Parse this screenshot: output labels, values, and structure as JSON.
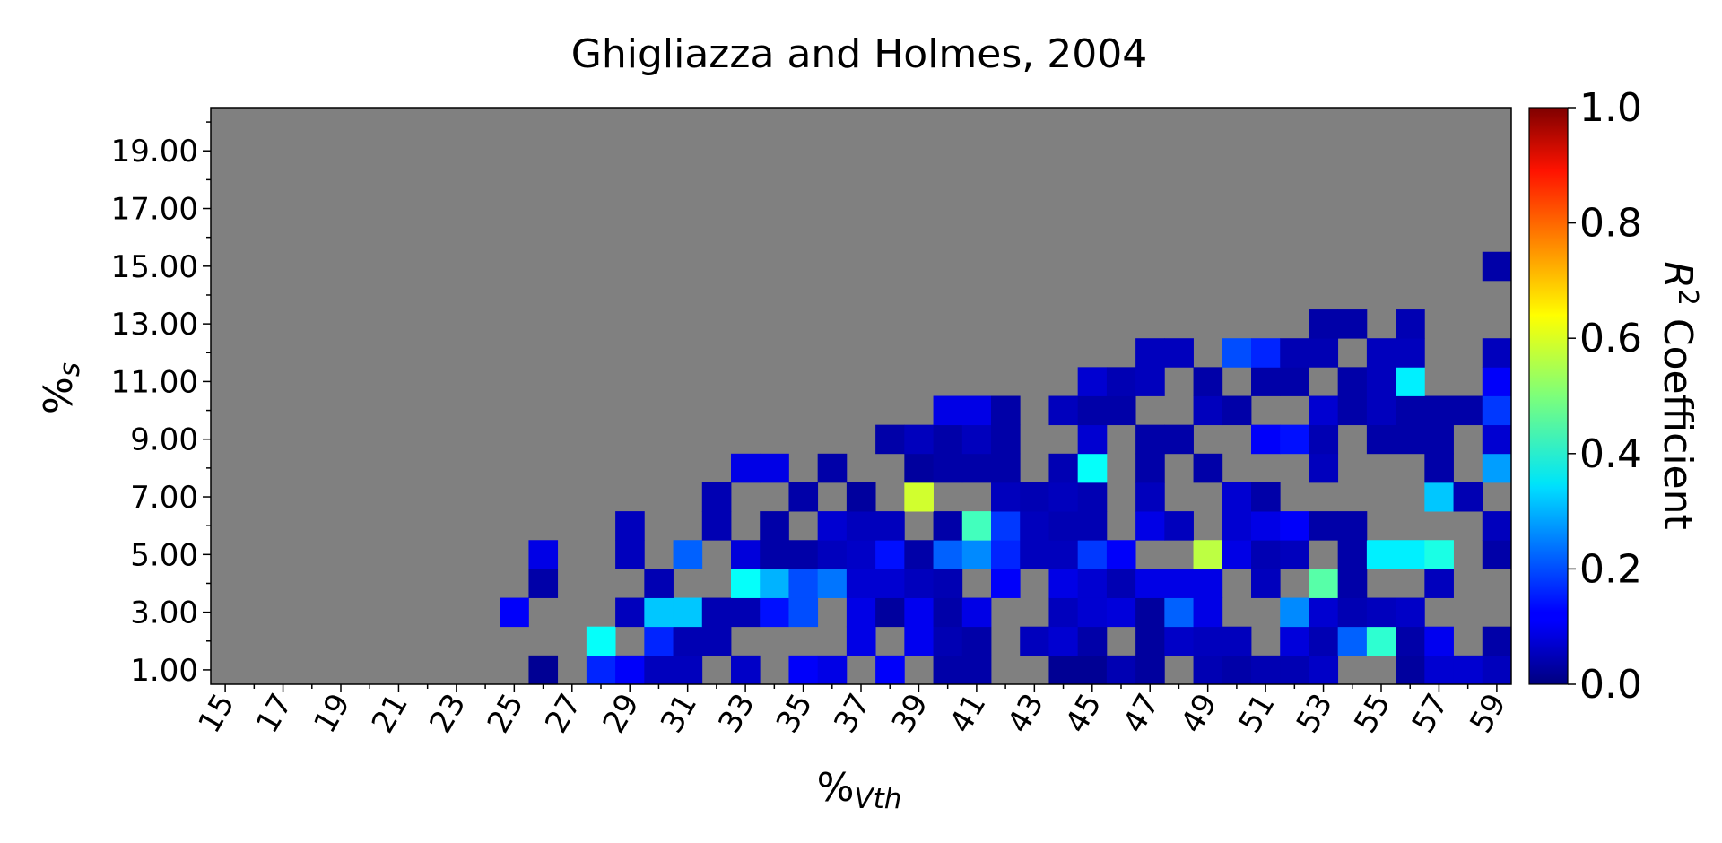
{
  "chart_data": {
    "type": "heatmap",
    "title": "Ghigliazza and Holmes, 2004",
    "xlabel": "%",
    "xlabel_sub": "Vth",
    "ylabel": "%",
    "ylabel_sub": "s",
    "x_start": 15,
    "x_end": 59,
    "x_tick_labels": [
      "15",
      "17",
      "19",
      "21",
      "23",
      "25",
      "27",
      "29",
      "31",
      "33",
      "35",
      "37",
      "39",
      "41",
      "43",
      "45",
      "47",
      "49",
      "51",
      "53",
      "55",
      "57",
      "59"
    ],
    "y_start": 1,
    "y_end": 20,
    "y_tick_labels": [
      "1.00",
      "3.00",
      "5.00",
      "7.00",
      "9.00",
      "11.00",
      "13.00",
      "15.00",
      "17.00",
      "19.00"
    ],
    "missing_color": "#808080",
    "colorbar": {
      "label": "R",
      "label_sup": "2",
      "label_rest": " Coefficient",
      "range": [
        0,
        1
      ],
      "tick_labels": [
        "0.0",
        "0.2",
        "0.4",
        "0.6",
        "0.8",
        "1.0"
      ],
      "colormap": "jet"
    },
    "cells": [
      [
        26,
        1,
        0.02
      ],
      [
        28,
        1,
        0.16
      ],
      [
        29,
        1,
        0.12
      ],
      [
        30,
        1,
        0.06
      ],
      [
        31,
        1,
        0.06
      ],
      [
        33,
        1,
        0.07
      ],
      [
        35,
        1,
        0.12
      ],
      [
        36,
        1,
        0.1
      ],
      [
        38,
        1,
        0.12
      ],
      [
        40,
        1,
        0.04
      ],
      [
        41,
        1,
        0.04
      ],
      [
        44,
        1,
        0.02
      ],
      [
        45,
        1,
        0.02
      ],
      [
        46,
        1,
        0.05
      ],
      [
        47,
        1,
        0.03
      ],
      [
        49,
        1,
        0.05
      ],
      [
        50,
        1,
        0.04
      ],
      [
        51,
        1,
        0.05
      ],
      [
        52,
        1,
        0.05
      ],
      [
        53,
        1,
        0.07
      ],
      [
        56,
        1,
        0.03
      ],
      [
        57,
        1,
        0.08
      ],
      [
        58,
        1,
        0.08
      ],
      [
        59,
        1,
        0.06
      ],
      [
        28,
        2,
        0.38
      ],
      [
        30,
        2,
        0.16
      ],
      [
        31,
        2,
        0.05
      ],
      [
        32,
        2,
        0.05
      ],
      [
        37,
        2,
        0.1
      ],
      [
        39,
        2,
        0.11
      ],
      [
        40,
        2,
        0.05
      ],
      [
        41,
        2,
        0.04
      ],
      [
        43,
        2,
        0.06
      ],
      [
        44,
        2,
        0.08
      ],
      [
        45,
        2,
        0.04
      ],
      [
        47,
        2,
        0.03
      ],
      [
        48,
        2,
        0.07
      ],
      [
        49,
        2,
        0.06
      ],
      [
        50,
        2,
        0.06
      ],
      [
        52,
        2,
        0.09
      ],
      [
        53,
        2,
        0.05
      ],
      [
        54,
        2,
        0.22
      ],
      [
        55,
        2,
        0.42
      ],
      [
        56,
        2,
        0.04
      ],
      [
        57,
        2,
        0.11
      ],
      [
        59,
        2,
        0.04
      ],
      [
        25,
        3,
        0.12
      ],
      [
        29,
        3,
        0.06
      ],
      [
        30,
        3,
        0.32
      ],
      [
        31,
        3,
        0.32
      ],
      [
        32,
        3,
        0.05
      ],
      [
        33,
        3,
        0.05
      ],
      [
        34,
        3,
        0.14
      ],
      [
        35,
        3,
        0.2
      ],
      [
        37,
        3,
        0.1
      ],
      [
        38,
        3,
        0.03
      ],
      [
        39,
        3,
        0.11
      ],
      [
        40,
        3,
        0.04
      ],
      [
        41,
        3,
        0.1
      ],
      [
        44,
        3,
        0.06
      ],
      [
        45,
        3,
        0.08
      ],
      [
        46,
        3,
        0.09
      ],
      [
        47,
        3,
        0.03
      ],
      [
        48,
        3,
        0.22
      ],
      [
        49,
        3,
        0.1
      ],
      [
        52,
        3,
        0.26
      ],
      [
        53,
        3,
        0.08
      ],
      [
        54,
        3,
        0.05
      ],
      [
        55,
        3,
        0.06
      ],
      [
        56,
        3,
        0.07
      ],
      [
        26,
        4,
        0.04
      ],
      [
        30,
        4,
        0.05
      ],
      [
        33,
        4,
        0.38
      ],
      [
        34,
        4,
        0.3
      ],
      [
        35,
        4,
        0.2
      ],
      [
        36,
        4,
        0.24
      ],
      [
        37,
        4,
        0.08
      ],
      [
        38,
        4,
        0.08
      ],
      [
        39,
        4,
        0.06
      ],
      [
        40,
        4,
        0.05
      ],
      [
        42,
        4,
        0.12
      ],
      [
        44,
        4,
        0.1
      ],
      [
        45,
        4,
        0.08
      ],
      [
        46,
        4,
        0.05
      ],
      [
        47,
        4,
        0.1
      ],
      [
        48,
        4,
        0.1
      ],
      [
        49,
        4,
        0.1
      ],
      [
        51,
        4,
        0.06
      ],
      [
        53,
        4,
        0.46
      ],
      [
        54,
        4,
        0.04
      ],
      [
        57,
        4,
        0.06
      ],
      [
        26,
        5,
        0.1
      ],
      [
        29,
        5,
        0.06
      ],
      [
        31,
        5,
        0.22
      ],
      [
        33,
        5,
        0.09
      ],
      [
        34,
        5,
        0.04
      ],
      [
        35,
        5,
        0.04
      ],
      [
        36,
        5,
        0.06
      ],
      [
        37,
        5,
        0.07
      ],
      [
        38,
        5,
        0.14
      ],
      [
        39,
        5,
        0.04
      ],
      [
        40,
        5,
        0.22
      ],
      [
        41,
        5,
        0.26
      ],
      [
        42,
        5,
        0.16
      ],
      [
        43,
        5,
        0.06
      ],
      [
        44,
        5,
        0.06
      ],
      [
        45,
        5,
        0.18
      ],
      [
        46,
        5,
        0.12
      ],
      [
        49,
        5,
        0.56
      ],
      [
        50,
        5,
        0.1
      ],
      [
        51,
        5,
        0.05
      ],
      [
        52,
        5,
        0.06
      ],
      [
        54,
        5,
        0.04
      ],
      [
        55,
        5,
        0.36
      ],
      [
        56,
        5,
        0.36
      ],
      [
        57,
        5,
        0.4
      ],
      [
        59,
        5,
        0.04
      ],
      [
        29,
        6,
        0.06
      ],
      [
        32,
        6,
        0.05
      ],
      [
        34,
        6,
        0.04
      ],
      [
        36,
        6,
        0.08
      ],
      [
        37,
        6,
        0.06
      ],
      [
        38,
        6,
        0.06
      ],
      [
        40,
        6,
        0.04
      ],
      [
        41,
        6,
        0.44
      ],
      [
        42,
        6,
        0.18
      ],
      [
        43,
        6,
        0.06
      ],
      [
        44,
        6,
        0.05
      ],
      [
        45,
        6,
        0.05
      ],
      [
        47,
        6,
        0.1
      ],
      [
        48,
        6,
        0.06
      ],
      [
        50,
        6,
        0.08
      ],
      [
        51,
        6,
        0.1
      ],
      [
        52,
        6,
        0.12
      ],
      [
        53,
        6,
        0.04
      ],
      [
        54,
        6,
        0.04
      ],
      [
        59,
        6,
        0.06
      ],
      [
        32,
        7,
        0.05
      ],
      [
        35,
        7,
        0.04
      ],
      [
        37,
        7,
        0.03
      ],
      [
        39,
        7,
        0.58
      ],
      [
        42,
        7,
        0.06
      ],
      [
        43,
        7,
        0.05
      ],
      [
        44,
        7,
        0.06
      ],
      [
        45,
        7,
        0.05
      ],
      [
        47,
        7,
        0.06
      ],
      [
        50,
        7,
        0.08
      ],
      [
        51,
        7,
        0.04
      ],
      [
        57,
        7,
        0.32
      ],
      [
        58,
        7,
        0.05
      ],
      [
        33,
        8,
        0.1
      ],
      [
        34,
        8,
        0.1
      ],
      [
        36,
        8,
        0.04
      ],
      [
        39,
        8,
        0.03
      ],
      [
        40,
        8,
        0.04
      ],
      [
        41,
        8,
        0.04
      ],
      [
        42,
        8,
        0.04
      ],
      [
        44,
        8,
        0.05
      ],
      [
        45,
        8,
        0.38
      ],
      [
        47,
        8,
        0.04
      ],
      [
        49,
        8,
        0.04
      ],
      [
        53,
        8,
        0.06
      ],
      [
        57,
        8,
        0.04
      ],
      [
        59,
        8,
        0.28
      ],
      [
        38,
        9,
        0.04
      ],
      [
        39,
        9,
        0.06
      ],
      [
        40,
        9,
        0.04
      ],
      [
        41,
        9,
        0.06
      ],
      [
        42,
        9,
        0.04
      ],
      [
        45,
        9,
        0.08
      ],
      [
        47,
        9,
        0.04
      ],
      [
        48,
        9,
        0.04
      ],
      [
        51,
        9,
        0.12
      ],
      [
        52,
        9,
        0.14
      ],
      [
        53,
        9,
        0.05
      ],
      [
        55,
        9,
        0.04
      ],
      [
        56,
        9,
        0.04
      ],
      [
        57,
        9,
        0.04
      ],
      [
        59,
        9,
        0.08
      ],
      [
        40,
        10,
        0.1
      ],
      [
        41,
        10,
        0.1
      ],
      [
        42,
        10,
        0.04
      ],
      [
        44,
        10,
        0.06
      ],
      [
        45,
        10,
        0.04
      ],
      [
        46,
        10,
        0.04
      ],
      [
        49,
        10,
        0.06
      ],
      [
        50,
        10,
        0.04
      ],
      [
        53,
        10,
        0.08
      ],
      [
        54,
        10,
        0.04
      ],
      [
        55,
        10,
        0.06
      ],
      [
        56,
        10,
        0.04
      ],
      [
        57,
        10,
        0.04
      ],
      [
        58,
        10,
        0.04
      ],
      [
        59,
        10,
        0.18
      ],
      [
        45,
        11,
        0.08
      ],
      [
        46,
        11,
        0.05
      ],
      [
        47,
        11,
        0.06
      ],
      [
        49,
        11,
        0.04
      ],
      [
        51,
        11,
        0.04
      ],
      [
        52,
        11,
        0.04
      ],
      [
        54,
        11,
        0.04
      ],
      [
        55,
        11,
        0.06
      ],
      [
        56,
        11,
        0.36
      ],
      [
        59,
        11,
        0.12
      ],
      [
        47,
        12,
        0.06
      ],
      [
        48,
        12,
        0.06
      ],
      [
        50,
        12,
        0.2
      ],
      [
        51,
        12,
        0.16
      ],
      [
        52,
        12,
        0.05
      ],
      [
        53,
        12,
        0.05
      ],
      [
        55,
        12,
        0.06
      ],
      [
        56,
        12,
        0.06
      ],
      [
        59,
        12,
        0.06
      ],
      [
        53,
        13,
        0.04
      ],
      [
        54,
        13,
        0.04
      ],
      [
        56,
        13,
        0.05
      ],
      [
        59,
        15,
        0.04
      ]
    ]
  }
}
